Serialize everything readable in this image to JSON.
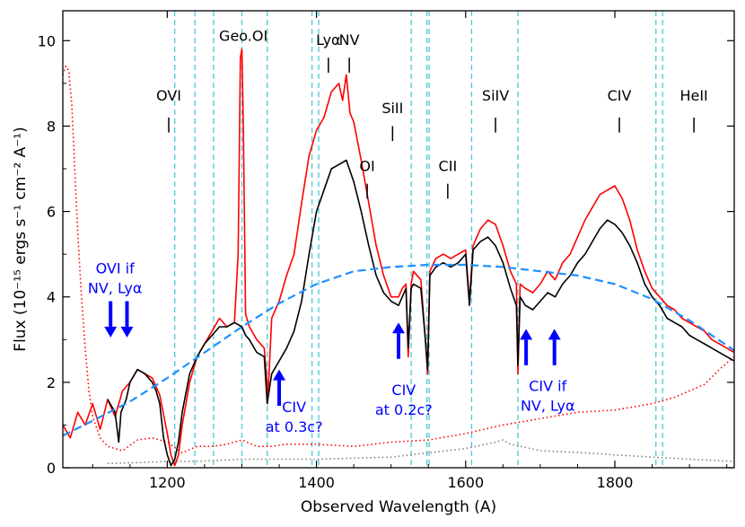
{
  "chart_data": {
    "type": "line",
    "xlabel": "Observed Wavelength (A)",
    "ylabel": "Flux (10⁻¹⁵ ergs s⁻¹ cm⁻² A⁻¹)",
    "xlim": [
      1060,
      1960
    ],
    "ylim": [
      0,
      10.7
    ],
    "xticks": [
      1200,
      1400,
      1600,
      1800
    ],
    "yticks": [
      0,
      2,
      4,
      6,
      8,
      10
    ],
    "colors": {
      "red": "#ff0000",
      "black": "#000000",
      "continuum": "#1e90ff",
      "vline": "#4cc9d6",
      "arrow": "#0000ff",
      "noise": "#808080"
    },
    "vlines": [
      1210,
      1237,
      1262,
      1300,
      1334,
      1394,
      1403,
      1527,
      1548,
      1551,
      1608,
      1670,
      1855,
      1864
    ],
    "line_labels": [
      {
        "text": "OVI",
        "x": 1202,
        "y": 8.6,
        "tick_top": 8.2,
        "tick_bot": 7.85
      },
      {
        "text": "Geo.OI",
        "x": 1302,
        "y": 10.0,
        "tick_top": null,
        "tick_bot": null
      },
      {
        "text": "Lyα",
        "x": 1416,
        "y": 9.9,
        "tick_top": 9.6,
        "tick_bot": 9.25
      },
      {
        "text": "NV",
        "x": 1444,
        "y": 9.9,
        "tick_top": 9.6,
        "tick_bot": 9.25
      },
      {
        "text": "SiII",
        "x": 1502,
        "y": 8.3,
        "tick_top": 8.0,
        "tick_bot": 7.65
      },
      {
        "text": "OI",
        "x": 1468,
        "y": 6.95,
        "tick_top": 6.65,
        "tick_bot": 6.3
      },
      {
        "text": "CII",
        "x": 1576,
        "y": 6.95,
        "tick_top": 6.65,
        "tick_bot": 6.3
      },
      {
        "text": "SiIV",
        "x": 1640,
        "y": 8.6,
        "tick_top": 8.2,
        "tick_bot": 7.85
      },
      {
        "text": "CIV",
        "x": 1806,
        "y": 8.6,
        "tick_top": 8.2,
        "tick_bot": 7.85
      },
      {
        "text": "HeII",
        "x": 1906,
        "y": 8.6,
        "tick_top": 8.2,
        "tick_bot": 7.85
      }
    ],
    "annotations": [
      {
        "lines": [
          "OVI if",
          "NV, Lyα"
        ],
        "x": 1130,
        "y": 4.55,
        "arrows": [
          {
            "x": 1124,
            "dir": "down",
            "y0": 3.9,
            "y1": 3.05
          },
          {
            "x": 1146,
            "dir": "down",
            "y0": 3.9,
            "y1": 3.05
          }
        ]
      },
      {
        "lines": [
          "CIV",
          "at 0.3c?"
        ],
        "x": 1370,
        "y": 1.3,
        "arrows": [
          {
            "x": 1350,
            "dir": "up",
            "y0": 1.45,
            "y1": 2.3
          }
        ]
      },
      {
        "lines": [
          "CIV",
          "at 0.2c?"
        ],
        "x": 1517,
        "y": 1.7,
        "arrows": [
          {
            "x": 1510,
            "dir": "up",
            "y0": 2.55,
            "y1": 3.4
          }
        ]
      },
      {
        "lines": [
          "CIV if",
          "NV, Lyα"
        ],
        "x": 1710,
        "y": 1.8,
        "arrows": [
          {
            "x": 1681,
            "dir": "up",
            "y0": 2.4,
            "y1": 3.25
          },
          {
            "x": 1719,
            "dir": "up",
            "y0": 2.4,
            "y1": 3.25
          }
        ]
      }
    ],
    "series": [
      {
        "name": "continuum fit",
        "style": "dashed",
        "x": [
          1060,
          1100,
          1150,
          1200,
          1250,
          1300,
          1350,
          1400,
          1450,
          1500,
          1550,
          1600,
          1650,
          1700,
          1750,
          1800,
          1850,
          1900,
          1960
        ],
        "y": [
          0.75,
          1.1,
          1.55,
          2.1,
          2.7,
          3.3,
          3.85,
          4.3,
          4.6,
          4.7,
          4.75,
          4.75,
          4.7,
          4.6,
          4.5,
          4.3,
          3.95,
          3.45,
          2.75
        ]
      },
      {
        "name": "red spectrum",
        "style": "solid",
        "x": [
          1060,
          1070,
          1080,
          1090,
          1100,
          1110,
          1120,
          1130,
          1140,
          1150,
          1160,
          1170,
          1180,
          1190,
          1200,
          1205,
          1210,
          1215,
          1220,
          1230,
          1240,
          1250,
          1260,
          1270,
          1280,
          1290,
          1295,
          1298,
          1300,
          1302,
          1305,
          1310,
          1320,
          1330,
          1335,
          1340,
          1350,
          1360,
          1370,
          1380,
          1390,
          1400,
          1410,
          1420,
          1430,
          1435,
          1440,
          1445,
          1450,
          1460,
          1470,
          1480,
          1490,
          1500,
          1510,
          1515,
          1520,
          1523,
          1527,
          1530,
          1540,
          1546,
          1549,
          1552,
          1560,
          1570,
          1580,
          1590,
          1600,
          1605,
          1610,
          1620,
          1630,
          1640,
          1650,
          1660,
          1668,
          1670,
          1673,
          1680,
          1690,
          1700,
          1710,
          1720,
          1730,
          1740,
          1750,
          1760,
          1770,
          1780,
          1790,
          1800,
          1810,
          1820,
          1830,
          1840,
          1850,
          1860,
          1870,
          1880,
          1890,
          1900,
          1910,
          1920,
          1930,
          1940,
          1950,
          1960
        ],
        "y": [
          1.0,
          0.7,
          1.3,
          1.0,
          1.5,
          0.9,
          1.6,
          1.2,
          1.8,
          2.0,
          2.3,
          2.2,
          2.1,
          1.7,
          0.8,
          0.3,
          0.05,
          0.3,
          1.0,
          2.0,
          2.6,
          2.9,
          3.2,
          3.5,
          3.3,
          3.4,
          5.0,
          9.6,
          9.8,
          8.0,
          3.6,
          3.3,
          3.0,
          2.8,
          1.7,
          3.5,
          3.9,
          4.5,
          5.0,
          6.2,
          7.3,
          7.9,
          8.2,
          8.8,
          9.0,
          8.6,
          9.2,
          8.3,
          8.1,
          7.2,
          6.2,
          5.2,
          4.5,
          4.0,
          4.0,
          4.2,
          4.3,
          2.6,
          4.3,
          4.6,
          4.4,
          3.0,
          2.2,
          4.6,
          4.9,
          5.0,
          4.9,
          5.0,
          5.1,
          3.9,
          5.2,
          5.6,
          5.8,
          5.7,
          5.2,
          4.6,
          4.3,
          2.2,
          4.3,
          4.2,
          4.1,
          4.3,
          4.6,
          4.4,
          4.8,
          5.0,
          5.4,
          5.8,
          6.1,
          6.4,
          6.5,
          6.6,
          6.3,
          5.8,
          5.1,
          4.6,
          4.2,
          4.0,
          3.8,
          3.7,
          3.5,
          3.4,
          3.3,
          3.2,
          3.0,
          2.9,
          2.8,
          2.7
        ]
      },
      {
        "name": "black spectrum",
        "style": "solid",
        "x": [
          1120,
          1130,
          1135,
          1138,
          1145,
          1150,
          1160,
          1170,
          1180,
          1185,
          1190,
          1195,
          1200,
          1205,
          1210,
          1215,
          1220,
          1230,
          1240,
          1250,
          1260,
          1270,
          1280,
          1290,
          1300,
          1305,
          1310,
          1320,
          1330,
          1334,
          1340,
          1350,
          1360,
          1370,
          1380,
          1390,
          1400,
          1410,
          1420,
          1430,
          1440,
          1450,
          1460,
          1470,
          1480,
          1490,
          1500,
          1510,
          1515,
          1520,
          1523,
          1527,
          1530,
          1540,
          1546,
          1549,
          1552,
          1560,
          1570,
          1580,
          1590,
          1600,
          1605,
          1610,
          1620,
          1630,
          1640,
          1650,
          1660,
          1668,
          1670,
          1673,
          1680,
          1690,
          1700,
          1710,
          1720,
          1730,
          1740,
          1750,
          1760,
          1770,
          1780,
          1790,
          1800,
          1810,
          1820,
          1830,
          1840,
          1850,
          1860,
          1870,
          1880,
          1890,
          1900,
          1910,
          1920,
          1930,
          1940,
          1950,
          1960
        ],
        "y": [
          1.6,
          1.3,
          0.6,
          1.3,
          1.6,
          2.0,
          2.3,
          2.2,
          2.0,
          1.8,
          1.5,
          0.7,
          0.3,
          0.05,
          0.2,
          0.6,
          1.3,
          2.2,
          2.6,
          2.9,
          3.1,
          3.3,
          3.3,
          3.4,
          3.3,
          3.1,
          3.0,
          2.7,
          2.6,
          1.5,
          2.2,
          2.5,
          2.8,
          3.2,
          3.9,
          5.0,
          6.0,
          6.5,
          7.0,
          7.1,
          7.2,
          6.7,
          6.0,
          5.2,
          4.5,
          4.1,
          3.9,
          3.8,
          4.0,
          4.2,
          2.8,
          4.2,
          4.3,
          4.2,
          3.0,
          2.3,
          4.5,
          4.7,
          4.8,
          4.7,
          4.8,
          5.0,
          3.8,
          5.1,
          5.3,
          5.4,
          5.2,
          4.8,
          4.2,
          3.8,
          2.4,
          4.0,
          3.8,
          3.7,
          3.9,
          4.1,
          4.0,
          4.3,
          4.5,
          4.8,
          5.0,
          5.3,
          5.6,
          5.8,
          5.7,
          5.5,
          5.2,
          4.8,
          4.3,
          4.0,
          3.8,
          3.5,
          3.4,
          3.3,
          3.1,
          3.0,
          2.9,
          2.8,
          2.7,
          2.6,
          2.5
        ]
      },
      {
        "name": "red error",
        "style": "dotted",
        "x": [
          1060,
          1064,
          1068,
          1072,
          1076,
          1080,
          1085,
          1090,
          1095,
          1100,
          1110,
          1120,
          1140,
          1160,
          1180,
          1200,
          1220,
          1240,
          1260,
          1280,
          1300,
          1320,
          1340,
          1360,
          1400,
          1450,
          1500,
          1550,
          1600,
          1650,
          1700,
          1750,
          1800,
          1850,
          1880,
          1900,
          1920,
          1940,
          1960
        ],
        "y": [
          9.2,
          9.4,
          9.3,
          8.5,
          7.0,
          5.5,
          4.0,
          2.8,
          1.8,
          1.2,
          0.7,
          0.5,
          0.4,
          0.65,
          0.7,
          0.6,
          0.35,
          0.5,
          0.5,
          0.55,
          0.65,
          0.5,
          0.5,
          0.55,
          0.55,
          0.5,
          0.6,
          0.65,
          0.8,
          1.0,
          1.15,
          1.3,
          1.35,
          1.5,
          1.65,
          1.8,
          1.95,
          2.3,
          2.6
        ]
      },
      {
        "name": "black error",
        "style": "dotted",
        "x": [
          1120,
          1160,
          1200,
          1240,
          1300,
          1400,
          1500,
          1600,
          1640,
          1650,
          1660,
          1700,
          1760,
          1800,
          1850,
          1900,
          1960
        ],
        "y": [
          0.1,
          0.12,
          0.15,
          0.15,
          0.2,
          0.2,
          0.25,
          0.45,
          0.6,
          0.65,
          0.55,
          0.4,
          0.35,
          0.3,
          0.25,
          0.2,
          0.15
        ]
      }
    ]
  }
}
